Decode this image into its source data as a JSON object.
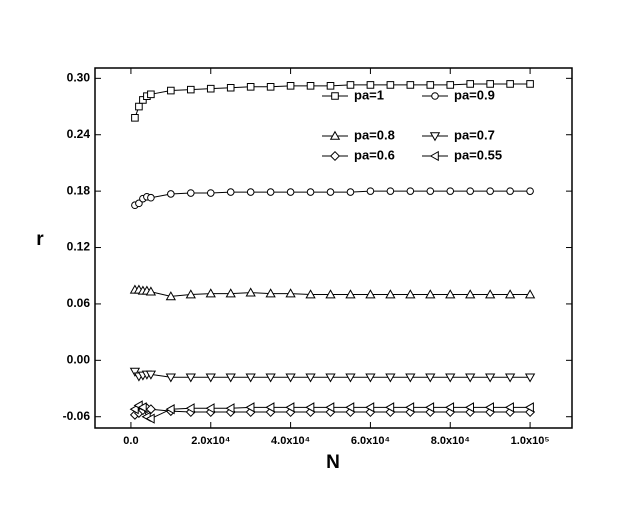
{
  "chart_data": {
    "type": "line",
    "x_label": "N",
    "y_label": "r",
    "x": [
      1000,
      2000,
      3000,
      4000,
      5000,
      10000,
      15000,
      20000,
      25000,
      30000,
      35000,
      40000,
      45000,
      50000,
      55000,
      60000,
      65000,
      70000,
      75000,
      80000,
      85000,
      90000,
      95000,
      100000
    ],
    "series": [
      {
        "name": "pa=1",
        "marker": "square",
        "color": "#000000",
        "values": [
          0.258,
          0.27,
          0.277,
          0.281,
          0.283,
          0.287,
          0.288,
          0.289,
          0.29,
          0.291,
          0.291,
          0.292,
          0.292,
          0.292,
          0.293,
          0.293,
          0.293,
          0.293,
          0.293,
          0.293,
          0.294,
          0.294,
          0.294,
          0.294
        ]
      },
      {
        "name": "pa=0.9",
        "marker": "circle",
        "color": "#000000",
        "values": [
          0.165,
          0.167,
          0.172,
          0.174,
          0.173,
          0.177,
          0.178,
          0.178,
          0.179,
          0.179,
          0.179,
          0.179,
          0.179,
          0.179,
          0.179,
          0.18,
          0.18,
          0.18,
          0.18,
          0.18,
          0.18,
          0.18,
          0.18,
          0.18
        ]
      },
      {
        "name": "pa=0.8",
        "marker": "triangle-up",
        "color": "#000000",
        "values": [
          0.075,
          0.075,
          0.074,
          0.074,
          0.073,
          0.068,
          0.07,
          0.071,
          0.071,
          0.072,
          0.071,
          0.071,
          0.07,
          0.07,
          0.07,
          0.07,
          0.07,
          0.07,
          0.07,
          0.07,
          0.07,
          0.07,
          0.07,
          0.07
        ]
      },
      {
        "name": "pa=0.7",
        "marker": "triangle-down",
        "color": "#000000",
        "values": [
          -0.012,
          -0.017,
          -0.016,
          -0.015,
          -0.015,
          -0.018,
          -0.018,
          -0.018,
          -0.018,
          -0.018,
          -0.018,
          -0.018,
          -0.018,
          -0.018,
          -0.018,
          -0.018,
          -0.018,
          -0.018,
          -0.018,
          -0.018,
          -0.018,
          -0.018,
          -0.018,
          -0.018
        ]
      },
      {
        "name": "pa=0.6",
        "marker": "diamond",
        "color": "#000000",
        "values": [
          -0.058,
          -0.056,
          -0.053,
          -0.051,
          -0.052,
          -0.054,
          -0.055,
          -0.055,
          -0.055,
          -0.055,
          -0.055,
          -0.055,
          -0.055,
          -0.055,
          -0.055,
          -0.055,
          -0.055,
          -0.055,
          -0.055,
          -0.055,
          -0.055,
          -0.055,
          -0.055,
          -0.055
        ]
      },
      {
        "name": "pa=0.55",
        "marker": "triangle-left",
        "color": "#000000",
        "values": [
          -0.052,
          -0.048,
          -0.05,
          -0.06,
          -0.062,
          -0.052,
          -0.051,
          -0.051,
          -0.051,
          -0.05,
          -0.05,
          -0.05,
          -0.05,
          -0.05,
          -0.05,
          -0.05,
          -0.05,
          -0.05,
          -0.05,
          -0.05,
          -0.05,
          -0.05,
          -0.05,
          -0.05
        ]
      }
    ],
    "xlim": [
      -9000,
      110500
    ],
    "ylim": [
      -0.072,
      0.311
    ],
    "xticks": [
      {
        "value": 0,
        "label": "0.0"
      },
      {
        "value": 20000,
        "label": "2.0x10⁴"
      },
      {
        "value": 40000,
        "label": "4.0x10⁴"
      },
      {
        "value": 60000,
        "label": "6.0x10⁴"
      },
      {
        "value": 80000,
        "label": "8.0x10⁴"
      },
      {
        "value": 100000,
        "label": "1.0x10⁵"
      }
    ],
    "yticks": [
      {
        "value": -0.06,
        "label": "-0.06"
      },
      {
        "value": 0,
        "label": "0.00"
      },
      {
        "value": 0.06,
        "label": "0.06"
      },
      {
        "value": 0.12,
        "label": "0.12"
      },
      {
        "value": 0.18,
        "label": "0.18"
      },
      {
        "value": 0.24,
        "label": "0.24"
      },
      {
        "value": 0.3,
        "label": "0.30"
      }
    ],
    "legend": "upper right",
    "grid": false
  }
}
